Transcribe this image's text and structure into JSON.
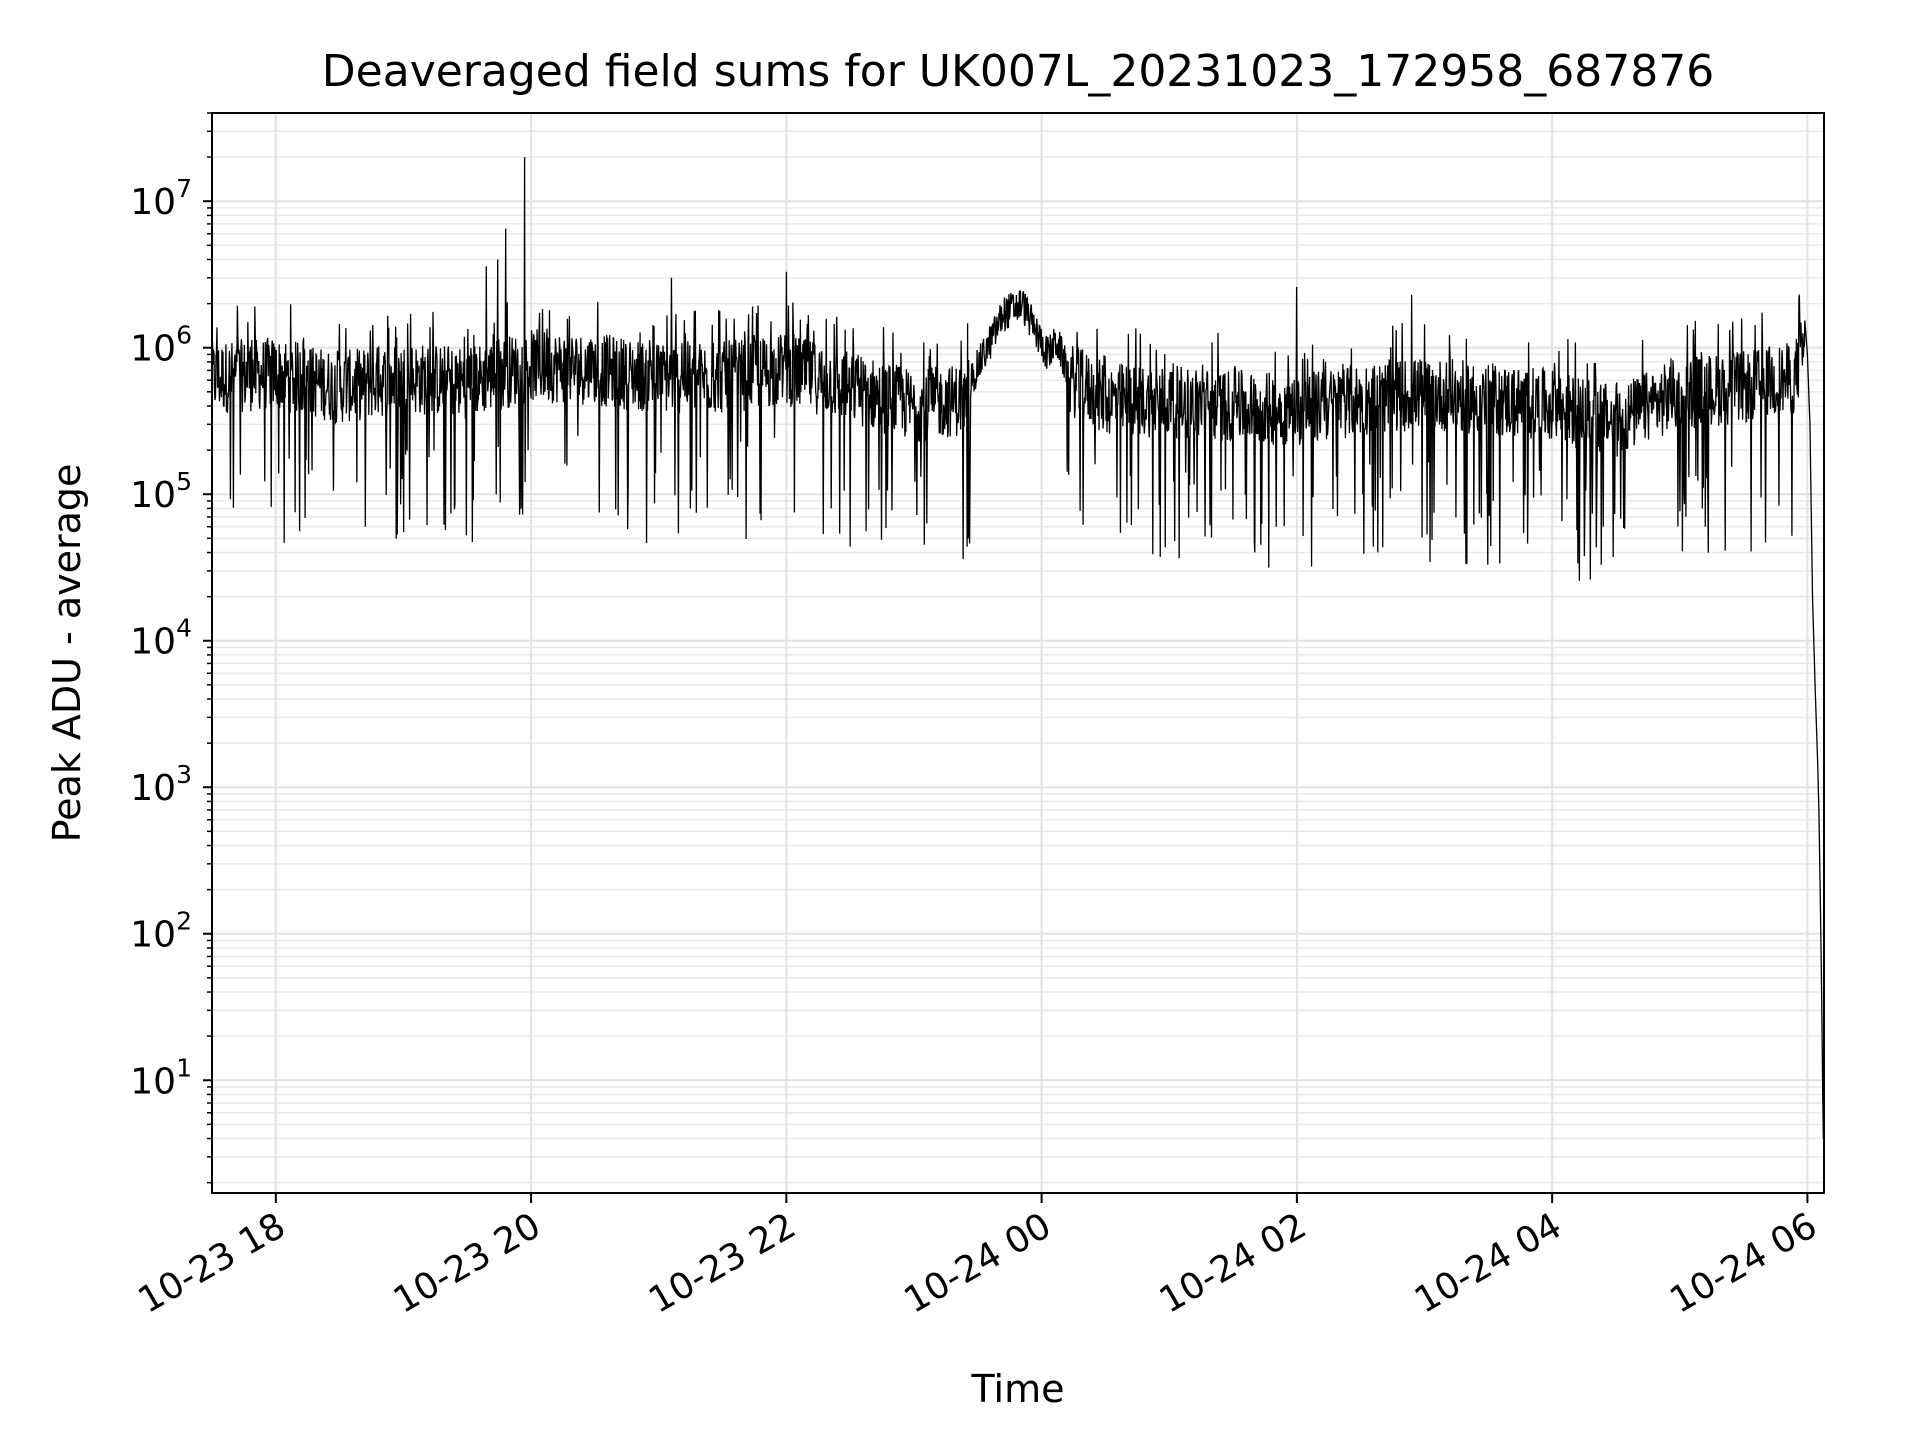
{
  "chart_data": {
    "type": "line",
    "title": "Deaveraged field sums for UK007L_20231023_172958_687876",
    "xlabel": "Time",
    "ylabel": "Peak ADU - average",
    "yscale": "log",
    "xlim_hours": [
      -6.5,
      6.13
    ],
    "ylim": [
      1.7,
      40000000
    ],
    "grid": true,
    "x_ticks": [
      {
        "hour": -6,
        "label": "10-23 18"
      },
      {
        "hour": -4,
        "label": "10-23 20"
      },
      {
        "hour": -2,
        "label": "10-23 22"
      },
      {
        "hour": 0,
        "label": "10-24 00"
      },
      {
        "hour": 2,
        "label": "10-24 02"
      },
      {
        "hour": 4,
        "label": "10-24 04"
      },
      {
        "hour": 6,
        "label": "10-24 06"
      }
    ],
    "y_ticks": [
      {
        "value": 10,
        "base": "10",
        "exp": "1"
      },
      {
        "value": 100,
        "base": "10",
        "exp": "2"
      },
      {
        "value": 1000,
        "base": "10",
        "exp": "3"
      },
      {
        "value": 10000,
        "base": "10",
        "exp": "4"
      },
      {
        "value": 100000,
        "base": "10",
        "exp": "5"
      },
      {
        "value": 1000000,
        "base": "10",
        "exp": "6"
      },
      {
        "value": 10000000,
        "base": "10",
        "exp": "7"
      }
    ],
    "series": [
      {
        "name": "Peak ADU - average",
        "color": "#000000",
        "trend": [
          [
            -6.5,
            700000
          ],
          [
            -6.0,
            750000
          ],
          [
            -5.5,
            600000
          ],
          [
            -5.0,
            700000
          ],
          [
            -4.5,
            650000
          ],
          [
            -4.0,
            850000
          ],
          [
            -3.5,
            800000
          ],
          [
            -3.0,
            700000
          ],
          [
            -2.5,
            700000
          ],
          [
            -2.0,
            800000
          ],
          [
            -1.5,
            600000
          ],
          [
            -1.0,
            450000
          ],
          [
            -0.6,
            500000
          ],
          [
            -0.4,
            1100000
          ],
          [
            -0.3,
            1700000
          ],
          [
            -0.15,
            2000000
          ],
          [
            -0.05,
            1300000
          ],
          [
            0.05,
            900000
          ],
          [
            0.12,
            1100000
          ],
          [
            0.2,
            700000
          ],
          [
            0.5,
            500000
          ],
          [
            1.0,
            480000
          ],
          [
            1.5,
            450000
          ],
          [
            2.0,
            420000
          ],
          [
            2.5,
            500000
          ],
          [
            3.0,
            550000
          ],
          [
            3.5,
            500000
          ],
          [
            4.0,
            450000
          ],
          [
            4.5,
            350000
          ],
          [
            5.0,
            550000
          ],
          [
            5.5,
            600000
          ],
          [
            5.9,
            700000
          ],
          [
            5.98,
            1200000
          ]
        ],
        "falloff": [
          [
            5.98,
            1300000
          ],
          [
            6.0,
            900000
          ],
          [
            6.02,
            300000
          ],
          [
            6.04,
            20000
          ],
          [
            6.06,
            5000
          ],
          [
            6.08,
            1500
          ],
          [
            6.09,
            700
          ],
          [
            6.1,
            200
          ],
          [
            6.11,
            50
          ],
          [
            6.12,
            8
          ],
          [
            6.125,
            4
          ]
        ],
        "spikes": [
          {
            "hour": -4.05,
            "value": 20000000
          },
          {
            "hour": -4.2,
            "value": 6500000
          },
          {
            "hour": -4.26,
            "value": 4000000
          },
          {
            "hour": -4.35,
            "value": 3600000
          },
          {
            "hour": 2.0,
            "value": 2600000
          },
          {
            "hour": -2.0,
            "value": 3300000
          },
          {
            "hour": -2.9,
            "value": 3000000
          },
          {
            "hour": 2.9,
            "value": 2300000
          },
          {
            "hour": 1.67,
            "value": 40000
          },
          {
            "hour": -1.65,
            "value": 80000
          },
          {
            "hour": -5.3,
            "value": 60000
          },
          {
            "hour": -5.0,
            "value": 55000
          },
          {
            "hour": 4.4,
            "value": 60000
          },
          {
            "hour": 5.2,
            "value": 60000
          }
        ]
      }
    ]
  }
}
